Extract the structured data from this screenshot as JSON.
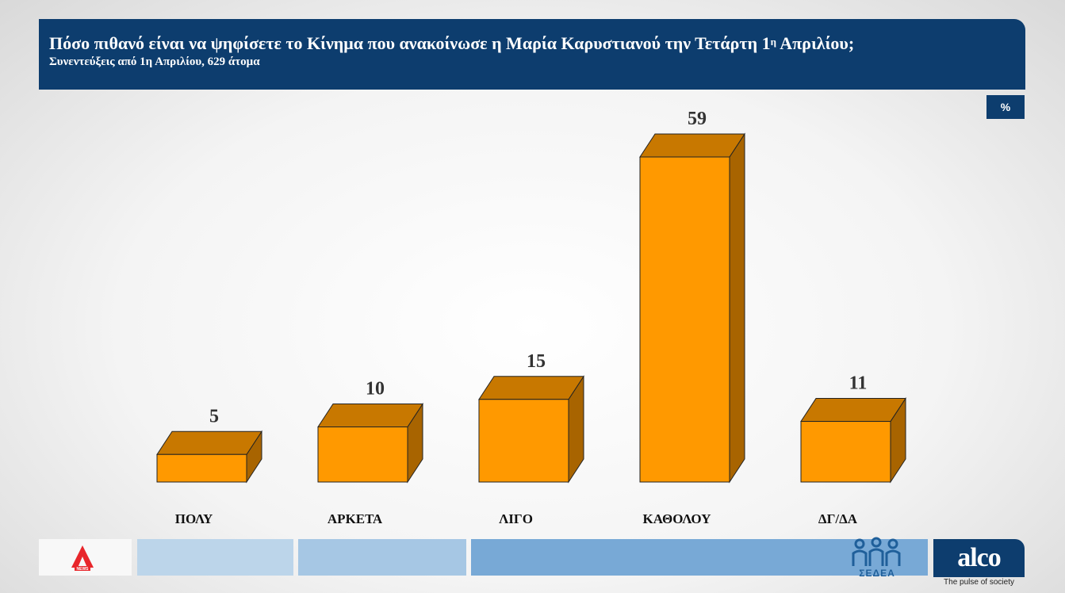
{
  "header": {
    "title_main": "Πόσο πιθανό είναι να ψηφίσετε το Κίνημα που ανακοίνωσε η Μαρία Καρυστιανού την Τετάρτη 1",
    "title_sup": "η",
    "title_end": " Απριλίου;",
    "subtitle": "Συνεντεύξεις από 1η Απριλίου, 629 άτομα"
  },
  "unit_badge": "%",
  "colors": {
    "header_bg": "#0d3d6e",
    "bar_front": "#ff9900",
    "bar_top": "#c87800",
    "bar_side": "#a86400"
  },
  "chart_data": {
    "type": "bar",
    "categories": [
      "ΠΟΛΥ",
      "ΑΡΚΕΤΑ",
      "ΛΙΓΟ",
      "ΚΑΘΟΛΟΥ",
      "ΔΓ/ΔΑ"
    ],
    "values": [
      5,
      10,
      15,
      59,
      11
    ],
    "title": "Πόσο πιθανό είναι να ψηφίσετε το Κίνημα που ανακοίνωσε η Μαρία Καρυστιανού την Τετάρτη 1η Απριλίου;",
    "subtitle": "Συνεντεύξεις από 1η Απριλίου, 629 άτομα",
    "xlabel": "",
    "ylabel": "",
    "unit": "%",
    "ylim": [
      0,
      59
    ],
    "grid": false,
    "data_labels": true,
    "style": "3d-bar"
  },
  "footer": {
    "sedea_label": "ΣΕΔΕΑ",
    "alco_logo_text": "alco",
    "alco_tagline": "The pulse of society",
    "news_logo_icon": "alpha-news-logo-icon",
    "sedea_icon": "sedea-people-logo-icon"
  }
}
